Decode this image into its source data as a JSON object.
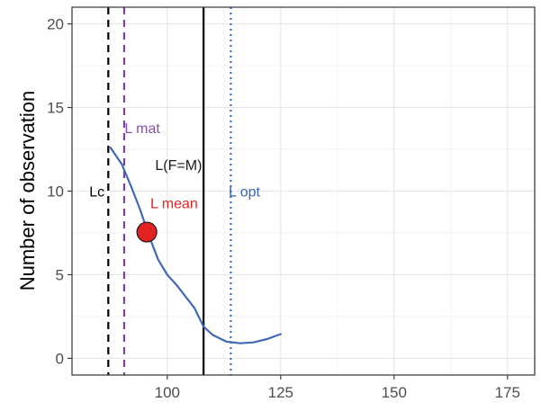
{
  "chart_data": {
    "type": "line",
    "xlabel": "",
    "ylabel": "Number of observation",
    "xlim": [
      79,
      181
    ],
    "ylim": [
      -1,
      21
    ],
    "x_ticks": [
      100,
      125,
      150,
      175
    ],
    "y_ticks": [
      0,
      5,
      10,
      15,
      20
    ],
    "grid": true,
    "series": [
      {
        "color": "#4169b8",
        "x": [
          87.5,
          90,
          92,
          94,
          96,
          98,
          100,
          102,
          104,
          106,
          108,
          110,
          113,
          116,
          119,
          122,
          125
        ],
        "y": [
          12.6,
          11.6,
          10.3,
          8.9,
          7.3,
          5.9,
          5.0,
          4.4,
          3.7,
          3.0,
          1.9,
          1.4,
          1.0,
          0.9,
          0.95,
          1.15,
          1.45
        ]
      }
    ],
    "reference_lines": [
      {
        "label": "Lc",
        "x": 87.0,
        "color": "#000000",
        "style": "dashed",
        "label_x": 84.5,
        "label_y": 10.0,
        "label_color": "#000000"
      },
      {
        "label": "L mat",
        "x": 90.5,
        "color": "#7b3fa8",
        "style": "dashed",
        "label_x": 94.5,
        "label_y": 13.8,
        "label_color": "#8a4fb8"
      },
      {
        "label": "L(F=M)",
        "x": 108.0,
        "color": "#000000",
        "style": "solid",
        "label_x": 102.5,
        "label_y": 11.6,
        "label_color": "#1a1a1a"
      },
      {
        "label": "L opt",
        "x": 114.0,
        "color": "#4169b8",
        "style": "dotted",
        "label_x": 117.0,
        "label_y": 10.0,
        "label_color": "#3a63b0"
      }
    ],
    "points": [
      {
        "label": "L mean",
        "x": 95.5,
        "y": 7.55,
        "color": "#e32222",
        "label_x": 101.5,
        "label_y": 9.3,
        "label_color": "#e32222"
      }
    ]
  }
}
